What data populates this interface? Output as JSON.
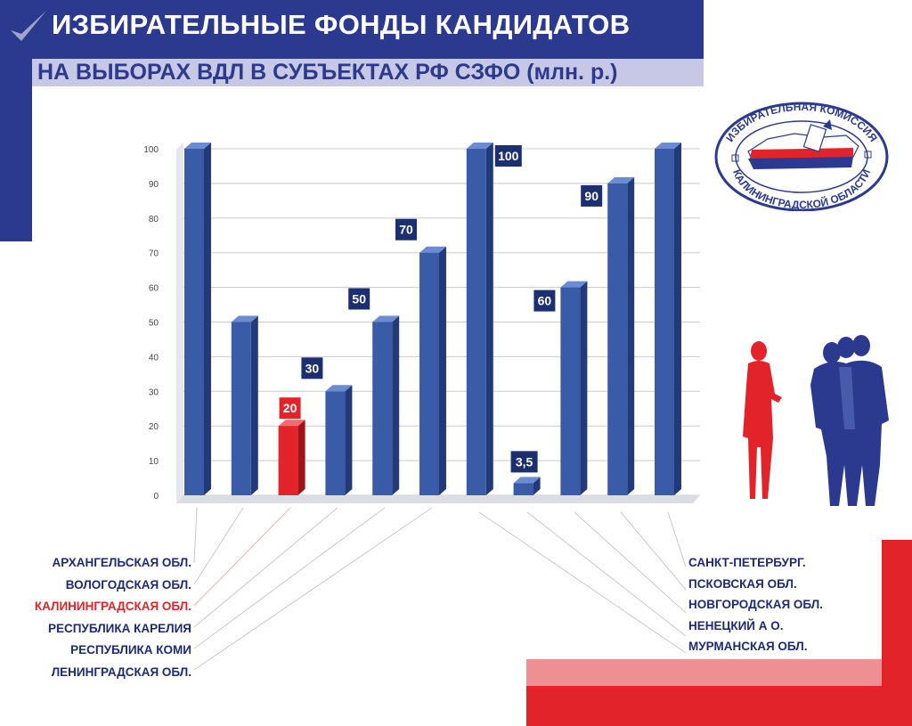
{
  "header": {
    "title": "ИЗБИРАТЕЛЬНЫЕ ФОНДЫ КАНДИДАТОВ",
    "subtitle": "НА ВЫБОРАХ ВДЛ В СУБЪЕКТАХ РФ СЗФО (млн. р.)"
  },
  "colors": {
    "brand_blue": "#2b3a8f",
    "bar_blue": "#3a5ba8",
    "highlight_red": "#e2242a",
    "subtitle_band": "#c7c8e6"
  },
  "logo": {
    "text_top": "ИЗБИРАТЕЛЬНАЯ КОМИССИЯ",
    "text_bottom": "КАЛИНИНГРАДСКОЙ ОБЛАСТИ"
  },
  "regions_left": [
    {
      "label": "АРХАНГЕЛЬСКАЯ ОБЛ.",
      "highlight": false
    },
    {
      "label": "ВОЛОГОДСКАЯ ОБЛ.",
      "highlight": false
    },
    {
      "label": "КАЛИНИНГРАДСКАЯ ОБЛ.",
      "highlight": true
    },
    {
      "label": "РЕСПУБЛИКА КАРЕЛИЯ",
      "highlight": false
    },
    {
      "label": "РЕСПУБЛИКА КОМИ",
      "highlight": false
    },
    {
      "label": "ЛЕНИНГРАДСКАЯ ОБЛ.",
      "highlight": false
    }
  ],
  "regions_right": [
    {
      "label": "САНКТ-ПЕТЕРБУРГ."
    },
    {
      "label": "ПСКОВСКАЯ ОБЛ."
    },
    {
      "label": "НОВГОРОДСКАЯ ОБЛ."
    },
    {
      "label": "НЕНЕЦКИЙ А О."
    },
    {
      "label": "МУРМАНСКАЯ ОБЛ."
    }
  ],
  "chart_data": {
    "type": "bar",
    "ylim": [
      0,
      100
    ],
    "yticks": [
      "0",
      "10",
      "20",
      "30",
      "40",
      "50",
      "60",
      "70",
      "80",
      "90",
      "100"
    ],
    "grid": true,
    "bars": [
      {
        "value": 100,
        "label": "",
        "highlight": false,
        "region": "АРХАНГЕЛЬСКАЯ ОБЛ."
      },
      {
        "value": 50,
        "label": "",
        "highlight": false,
        "region": "ВОЛОГОДСКАЯ ОБЛ."
      },
      {
        "value": 20,
        "label": "20",
        "highlight": true,
        "region": "КАЛИНИНГРАДСКАЯ ОБЛ."
      },
      {
        "value": 30,
        "label": "30",
        "highlight": false,
        "region": "РЕСПУБЛИКА КАРЕЛИЯ"
      },
      {
        "value": 50,
        "label": "50",
        "highlight": false,
        "region": "РЕСПУБЛИКА КОМИ"
      },
      {
        "value": 70,
        "label": "70",
        "highlight": false,
        "region": "ЛЕНИНГРАДСКАЯ ОБЛ."
      },
      {
        "value": 100,
        "label": "100",
        "highlight": false,
        "region": "САНКТ-ПЕТЕРБУРГ."
      },
      {
        "value": 3.5,
        "label": "3,5",
        "highlight": false,
        "region": "НЕНЕЦКИЙ А О."
      },
      {
        "value": 60,
        "label": "60",
        "highlight": false,
        "region": "НОВГОРОДСКАЯ ОБЛ."
      },
      {
        "value": 90,
        "label": "90",
        "highlight": false,
        "region": "ПСКОВСКАЯ ОБЛ."
      },
      {
        "value": 100,
        "label": "",
        "highlight": false,
        "region": "МУРМАНСКАЯ ОБЛ."
      }
    ]
  }
}
